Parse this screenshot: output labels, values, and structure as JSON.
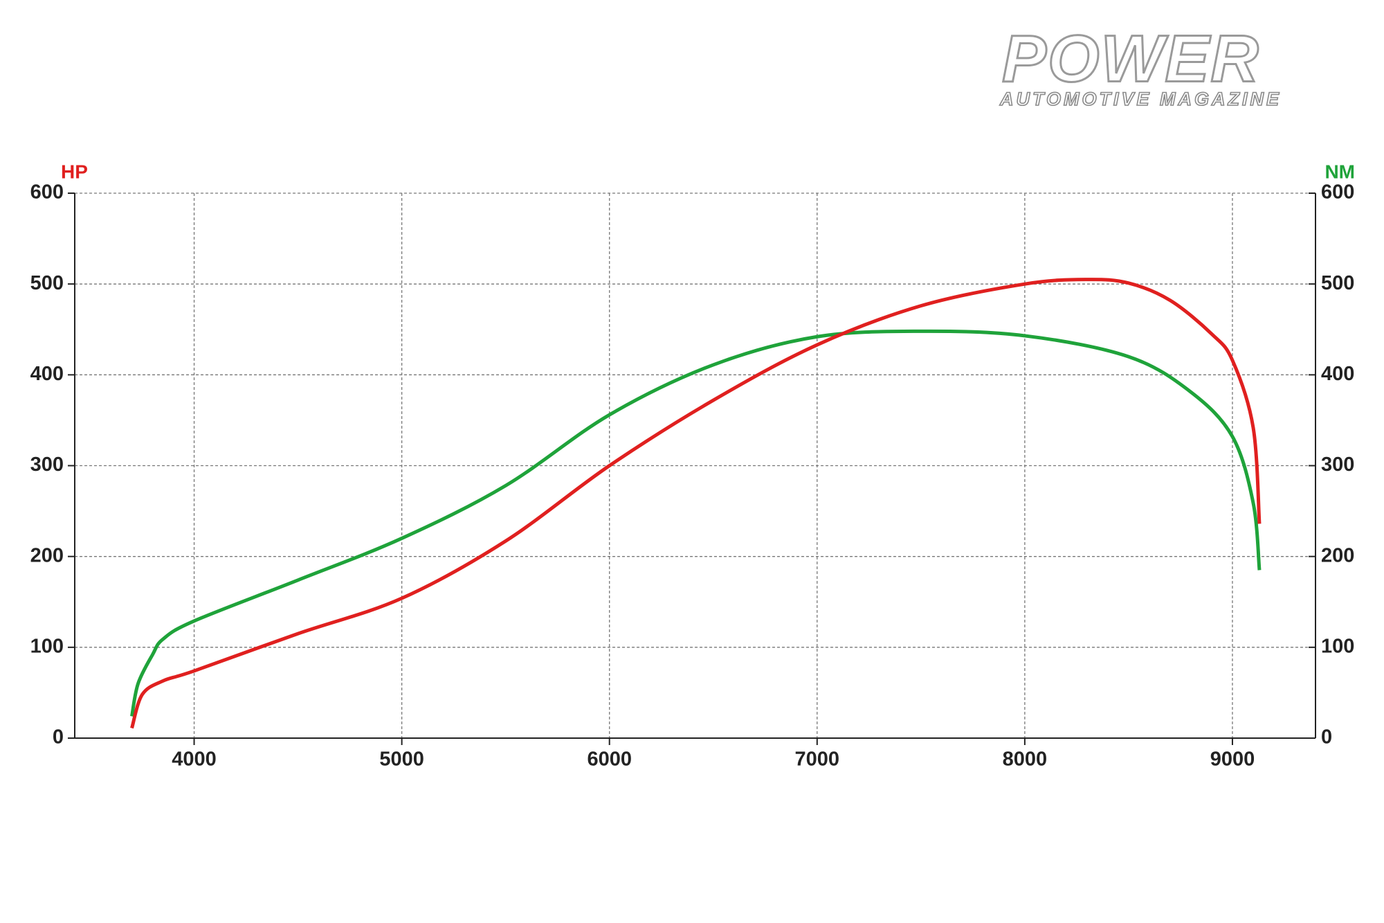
{
  "logo": {
    "title": "POWER",
    "subtitle": "AUTOMOTIVE MAGAZINE"
  },
  "chart_data": {
    "type": "line",
    "y_label": "HP",
    "y2_label": "NM",
    "xlim": [
      3425,
      9400
    ],
    "xticks": [
      4000,
      5000,
      6000,
      7000,
      8000,
      9000
    ],
    "ylim": [
      0,
      600
    ],
    "yticks": [
      0,
      100,
      200,
      300,
      400,
      500,
      600
    ],
    "y2lim": [
      0,
      600
    ],
    "y2ticks": [
      0,
      100,
      200,
      300,
      400,
      500,
      600
    ],
    "grid": true,
    "series": [
      {
        "name": "HP",
        "color": "#e0201f",
        "x": [
          3700,
          3750,
          3850,
          4000,
          4500,
          5000,
          5500,
          6000,
          6500,
          7000,
          7500,
          8000,
          8300,
          8500,
          8700,
          8900,
          9000,
          9100,
          9130
        ],
        "values": [
          11,
          48,
          63,
          74,
          115,
          154,
          217,
          300,
          372,
          433,
          476,
          500,
          505,
          501,
          482,
          445,
          416,
          342,
          236
        ]
      },
      {
        "name": "NM",
        "color": "#1fa33a",
        "axis": "y2",
        "x": [
          3700,
          3730,
          3800,
          3850,
          4000,
          4500,
          5000,
          5500,
          6000,
          6500,
          7000,
          7500,
          8000,
          8500,
          8800,
          9000,
          9100,
          9130
        ],
        "values": [
          24,
          60,
          92,
          109,
          129,
          174,
          220,
          278,
          356,
          411,
          442,
          448,
          443,
          420,
          381,
          332,
          259,
          185
        ]
      }
    ]
  }
}
